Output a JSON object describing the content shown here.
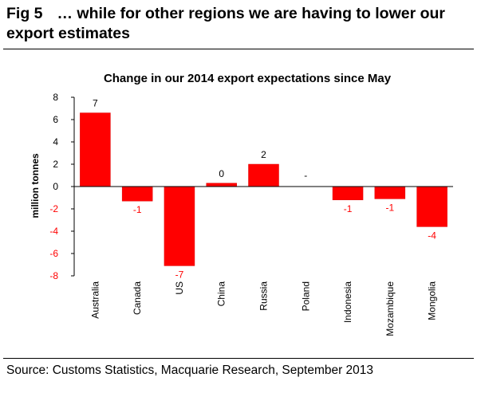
{
  "figure": {
    "number": "Fig 5",
    "title": "… while for other regions we are having to lower our export estimates",
    "source": "Source: Customs Statistics, Macquarie Research, September 2013"
  },
  "chart_data": {
    "type": "bar",
    "title": "Change in our 2014 export expectations since May",
    "xlabel": "",
    "ylabel": "million tonnes",
    "ylim": [
      -8,
      8
    ],
    "yticks": [
      8,
      6,
      4,
      2,
      0,
      -2,
      -4,
      -6,
      -8
    ],
    "categories": [
      "Australia",
      "Canada",
      "US",
      "China",
      "Russia",
      "Poland",
      "Indonesia",
      "Mozambique",
      "Mongolia"
    ],
    "values": [
      6.6,
      -1.3,
      -7.1,
      0.3,
      2.0,
      0,
      -1.2,
      -1.1,
      -3.6
    ],
    "data_labels": [
      "7",
      "-1",
      "-7",
      "0",
      "2",
      "-",
      "-1",
      "-1",
      "-4"
    ],
    "grid": false,
    "legend": "none",
    "colors": {
      "bar": "#ff0000",
      "bar_outline": "#e00000",
      "positive_label": "#000000",
      "negative_label": "#ff0000",
      "axis": "#000000"
    }
  }
}
